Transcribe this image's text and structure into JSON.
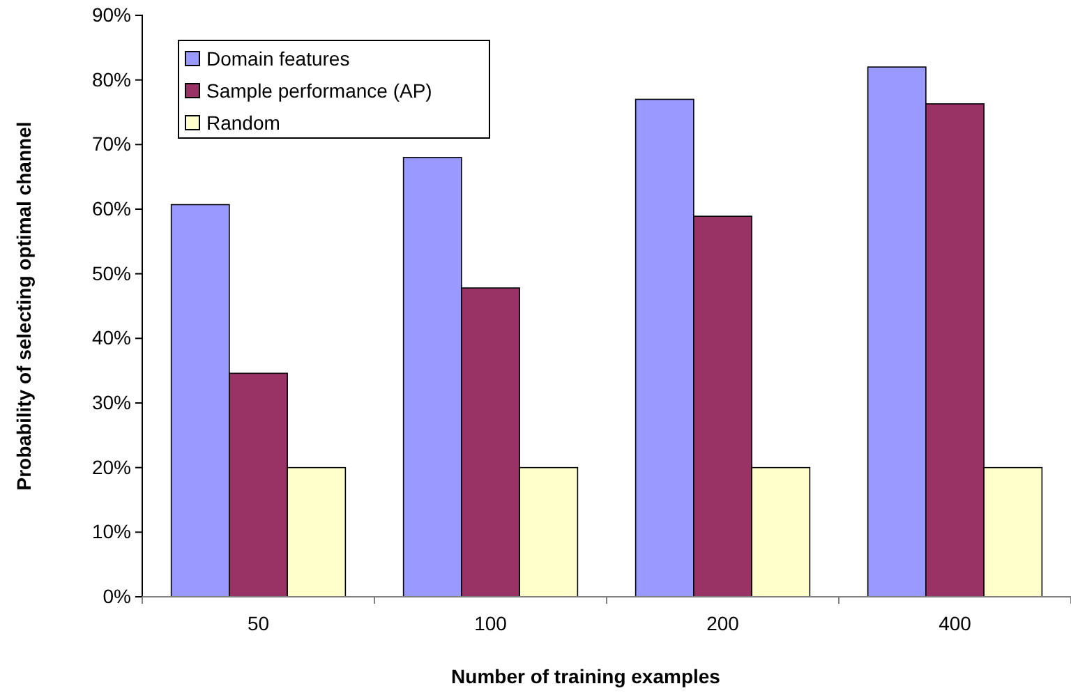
{
  "chart_data": {
    "type": "bar",
    "xlabel": "Number of training examples",
    "ylabel": "Probability of selecting optimal channel",
    "categories": [
      "50",
      "100",
      "200",
      "400"
    ],
    "series": [
      {
        "name": "Domain features",
        "color": "#9999ff",
        "values": [
          60.7,
          68.0,
          77.0,
          82.0
        ]
      },
      {
        "name": "Sample performance (AP)",
        "color": "#993366",
        "values": [
          34.6,
          47.8,
          58.9,
          76.3
        ]
      },
      {
        "name": "Random",
        "color": "#ffffcc",
        "values": [
          20,
          20,
          20,
          20
        ]
      }
    ],
    "ylim": [
      0,
      90
    ],
    "yticks": [
      {
        "value": 0,
        "label": "0%"
      },
      {
        "value": 10,
        "label": "10%"
      },
      {
        "value": 20,
        "label": "20%"
      },
      {
        "value": 30,
        "label": "30%"
      },
      {
        "value": 40,
        "label": "40%"
      },
      {
        "value": 50,
        "label": "50%"
      },
      {
        "value": 60,
        "label": "60%"
      },
      {
        "value": 70,
        "label": "70%"
      },
      {
        "value": 80,
        "label": "80%"
      },
      {
        "value": 90,
        "label": "90%"
      }
    ],
    "legend": "top left",
    "grid": false
  }
}
